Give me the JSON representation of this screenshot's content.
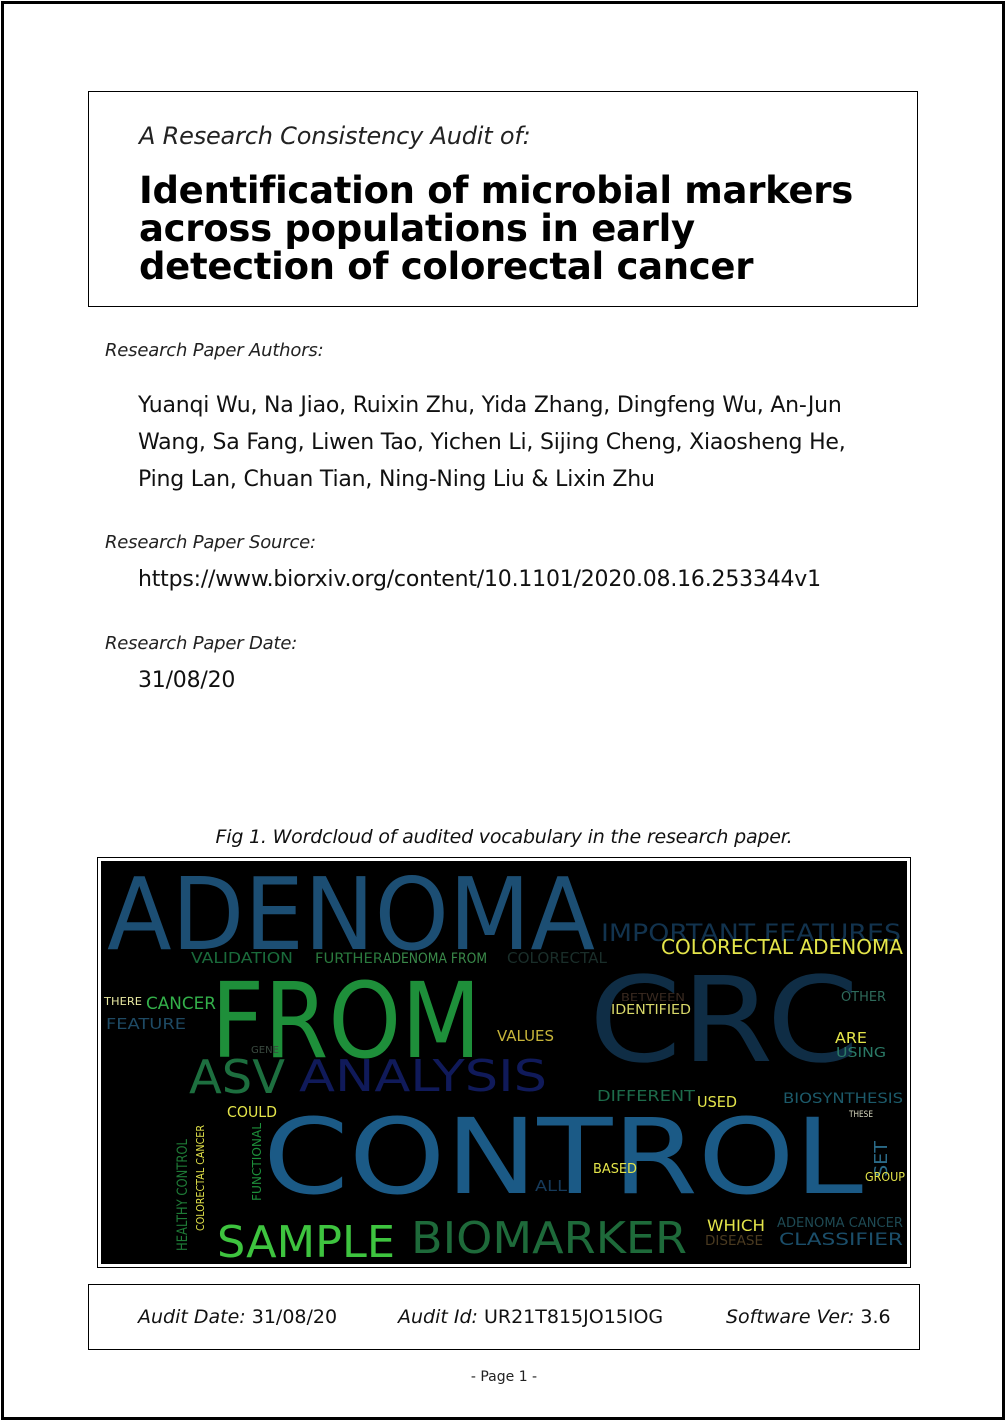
{
  "header": {
    "audit_of": "A Research Consistency Audit of:",
    "title": "Identification of microbial markers across populations in early detection of colorectal cancer"
  },
  "authors": {
    "label": "Research Paper Authors:",
    "line1": "Yuanqi Wu, Na Jiao, Ruixin Zhu, Yida Zhang, Dingfeng Wu, An-Jun",
    "line2": "Wang, Sa Fang, Liwen Tao, Yichen Li, Sijing Cheng, Xiaosheng He,",
    "line3": "Ping Lan, Chuan Tian, Ning-Ning Liu & Lixin Zhu"
  },
  "source": {
    "label": "Research Paper Source:",
    "value": "https://www.biorxiv.org/content/10.1101/2020.08.16.253344v1"
  },
  "date": {
    "label": "Research Paper Date:",
    "value": "31/08/20"
  },
  "figure": {
    "caption": "Fig 1. Wordcloud of audited vocabulary in the research paper.",
    "words": {
      "adenoma": "ADENOMA",
      "from": "FROM",
      "crc": "CRC",
      "control": "CONTROL",
      "asv": "ASV",
      "analysis": "ANALYSIS",
      "sample": "SAMPLE",
      "biomarker": "BIOMARKER",
      "important_features": "IMPORTANT FEATURES",
      "colorectal_adenoma": "COLORECTAL ADENOMA",
      "validation": "VALIDATION",
      "further": "FURTHER",
      "adenoma_from": "ADENOMA FROM",
      "colorectal": "COLORECTAL",
      "cancer": "CANCER",
      "there": "THERE",
      "feature": "FEATURE",
      "identified": "IDENTIFIED",
      "values": "VALUES",
      "are": "ARE",
      "other": "OTHER",
      "using": "USING",
      "different": "DIFFERENT",
      "used": "USED",
      "biosynthesis": "BIOSYNTHESIS",
      "could": "COULD",
      "functional": "FUNCTIONAL",
      "healthy_control": "HEALTHY CONTROL",
      "colorectal_cancer": "COLORECTAL CANCER",
      "based": "BASED",
      "all": "ALL",
      "set": "SET",
      "group": "GROUP",
      "which": "WHICH",
      "disease": "DISEASE",
      "adenoma_cancer": "ADENOMA CANCER",
      "classifier": "CLASSIFIER",
      "gene": "GENE",
      "these": "THESE",
      "between": "BETWEEN"
    }
  },
  "footer": {
    "audit_date_label": "Audit Date:",
    "audit_date": "31/08/20",
    "audit_id_label": "Audit Id:",
    "audit_id": "UR21T815JO15IOG",
    "software_label": "Software Ver:",
    "software_version": "3.6"
  },
  "page": {
    "number_text": "-  Page 1  -"
  }
}
